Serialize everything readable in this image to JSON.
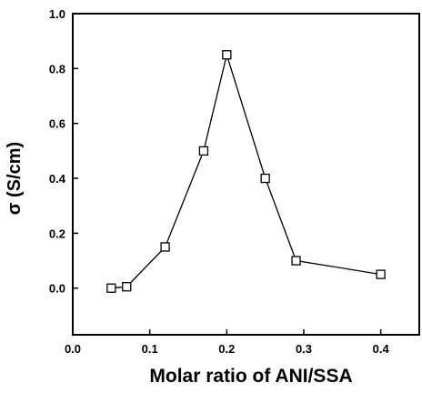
{
  "chart_data": {
    "type": "line",
    "title": "",
    "xlabel": "Molar ratio of ANI/SSA",
    "ylabel": "σ (S/cm)",
    "xlim": [
      0.0,
      0.45
    ],
    "ylim": [
      -0.17,
      1.0
    ],
    "xticks": [
      0.0,
      0.1,
      0.2,
      0.3,
      0.4
    ],
    "xtick_labels": [
      "0.0",
      "0.1",
      "0.2",
      "0.3",
      "0.4"
    ],
    "yticks": [
      0.0,
      0.2,
      0.4,
      0.6,
      0.8,
      1.0
    ],
    "ytick_labels": [
      "0.0",
      "0.2",
      "0.4",
      "0.6",
      "0.8",
      "1.0"
    ],
    "grid": false,
    "legend": "none",
    "marker": "open-square",
    "line_color": "#000000",
    "series": [
      {
        "x": [
          0.05,
          0.07,
          0.12,
          0.17,
          0.2,
          0.25,
          0.29,
          0.4
        ],
        "y": [
          0.0,
          0.005,
          0.15,
          0.5,
          0.85,
          0.4,
          0.1,
          0.05
        ]
      }
    ]
  }
}
